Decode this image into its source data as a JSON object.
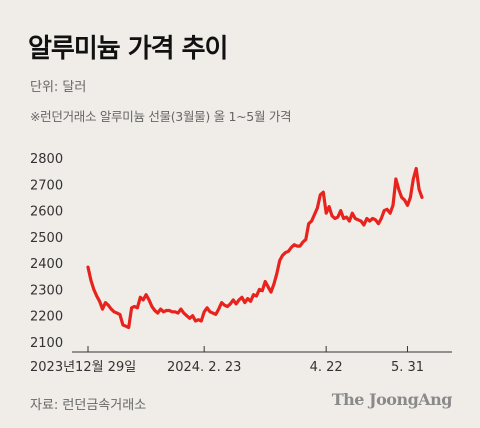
{
  "header": {
    "title": "알루미늄 가격 추이",
    "unit": "단위: 달러",
    "note": "※런던거래소 알루미늄 선물(3월물) 올 1~5월 가격"
  },
  "footer": {
    "source": "자료: 런던금속거래소",
    "brand": "The JoongAng"
  },
  "colors": {
    "line": "#e8231e",
    "axis": "#333333",
    "background": "#f0ede8"
  },
  "chart_data": {
    "type": "line",
    "title": "알루미늄 가격 추이",
    "ylabel": "단위: 달러",
    "ylim": [
      2100,
      2800
    ],
    "yticks": [
      2100,
      2200,
      2300,
      2400,
      2500,
      2600,
      2700,
      2800
    ],
    "grid": false,
    "xtick_labels": [
      {
        "label": "2023년12월 29일",
        "index": 0
      },
      {
        "label": "2024. 2. 23",
        "index": 40
      },
      {
        "label": "4. 22",
        "index": 82
      },
      {
        "label": "5. 31",
        "index": 110
      }
    ],
    "series": [
      {
        "values": [
          2385,
          2335,
          2300,
          2275,
          2255,
          2225,
          2250,
          2240,
          2225,
          2215,
          2210,
          2205,
          2165,
          2160,
          2155,
          2230,
          2235,
          2230,
          2270,
          2260,
          2280,
          2260,
          2235,
          2220,
          2210,
          2225,
          2215,
          2220,
          2220,
          2215,
          2215,
          2210,
          2225,
          2210,
          2200,
          2190,
          2200,
          2180,
          2185,
          2180,
          2215,
          2230,
          2215,
          2210,
          2205,
          2225,
          2250,
          2240,
          2235,
          2245,
          2260,
          2245,
          2260,
          2270,
          2250,
          2265,
          2255,
          2280,
          2275,
          2300,
          2295,
          2330,
          2310,
          2290,
          2320,
          2360,
          2410,
          2430,
          2440,
          2445,
          2460,
          2470,
          2465,
          2465,
          2480,
          2490,
          2550,
          2560,
          2585,
          2610,
          2660,
          2670,
          2590,
          2615,
          2580,
          2570,
          2575,
          2600,
          2570,
          2575,
          2560,
          2590,
          2570,
          2565,
          2560,
          2545,
          2570,
          2560,
          2570,
          2565,
          2550,
          2570,
          2600,
          2605,
          2590,
          2620,
          2720,
          2680,
          2650,
          2640,
          2620,
          2650,
          2720,
          2760,
          2680,
          2650
        ]
      }
    ]
  }
}
